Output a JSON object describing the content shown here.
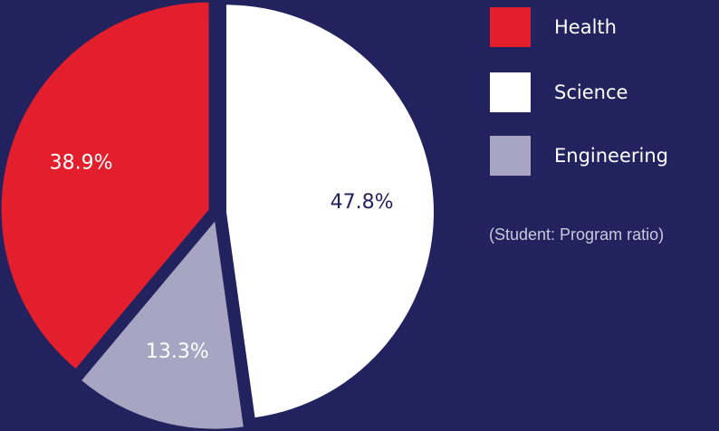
{
  "chart_data": {
    "type": "pie",
    "slices": [
      {
        "label": "Science",
        "value": 47.8,
        "display": "47.8%",
        "color": "#ffffff",
        "text_color": "#22225e"
      },
      {
        "label": "Engineering",
        "value": 13.3,
        "display": "13.3%",
        "color": "#a7a5c2",
        "text_color": "#ffffff"
      },
      {
        "label": "Health",
        "value": 38.9,
        "display": "38.9%",
        "color": "#e31f2d",
        "text_color": "#ffffff"
      }
    ],
    "exploded": true,
    "legend": {
      "position": "right",
      "items": [
        {
          "label": "Health",
          "color": "#e31f2d"
        },
        {
          "label": "Science",
          "color": "#ffffff"
        },
        {
          "label": "Engineering",
          "color": "#a7a5c2"
        }
      ]
    },
    "note": "(Student: Program ratio)"
  },
  "colors": {
    "background": "#22225e",
    "health": "#e31f2d",
    "science": "#ffffff",
    "engineering": "#a7a5c2"
  }
}
